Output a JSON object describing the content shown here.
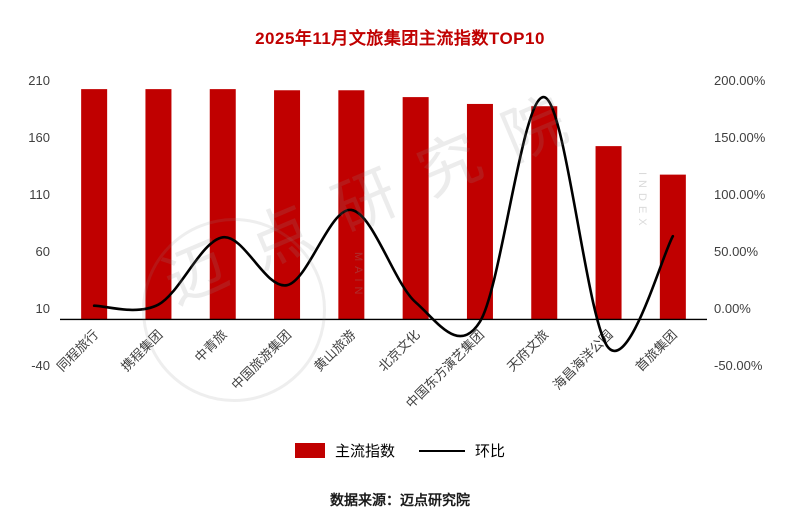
{
  "title": "2025年11月文旅集团主流指数TOP10",
  "legend": {
    "bar_label": "主流指数",
    "line_label": "环比"
  },
  "footer": "数据来源：迈点研究院",
  "watermark": {
    "text": "迈点研究院",
    "letters_a": "MAIN",
    "letters_b": "INDEX"
  },
  "colors": {
    "bar": "#C00000",
    "line": "#000000",
    "title": "#C00000",
    "axis_text": "#404040"
  },
  "chart_data": {
    "type": "combo",
    "title": "2025年11月文旅集团主流指数TOP10",
    "categories": [
      "同程旅行",
      "携程集团",
      "中青旅",
      "中国旅游集团",
      "黄山旅游",
      "北京文化",
      "中国东方演艺集团",
      "天府文旅",
      "海昌海洋公园",
      "首旅集团"
    ],
    "series": [
      {
        "name": "主流指数",
        "chart_type": "bar",
        "axis": "left",
        "values": [
          202,
          202,
          202,
          201,
          201,
          195,
          189,
          187,
          152,
          127
        ]
      },
      {
        "name": "环比",
        "chart_type": "line",
        "axis": "right",
        "unit": "%",
        "values": [
          2,
          3,
          62,
          20,
          86,
          5,
          -12,
          185,
          -35,
          63
        ]
      }
    ],
    "left_axis": {
      "min": -40,
      "max": 210,
      "ticks": [
        210,
        160,
        110,
        60,
        10,
        -40
      ]
    },
    "right_axis": {
      "min": -50,
      "max": 200,
      "ticks": [
        {
          "label": "200.00%",
          "value": 200
        },
        {
          "label": "150.00%",
          "value": 150
        },
        {
          "label": "100.00%",
          "value": 100
        },
        {
          "label": "50.00%",
          "value": 50
        },
        {
          "label": "0.00%",
          "value": 0
        },
        {
          "label": "-50.00%",
          "value": -50
        }
      ]
    },
    "legend_position": "bottom",
    "grid": false
  }
}
